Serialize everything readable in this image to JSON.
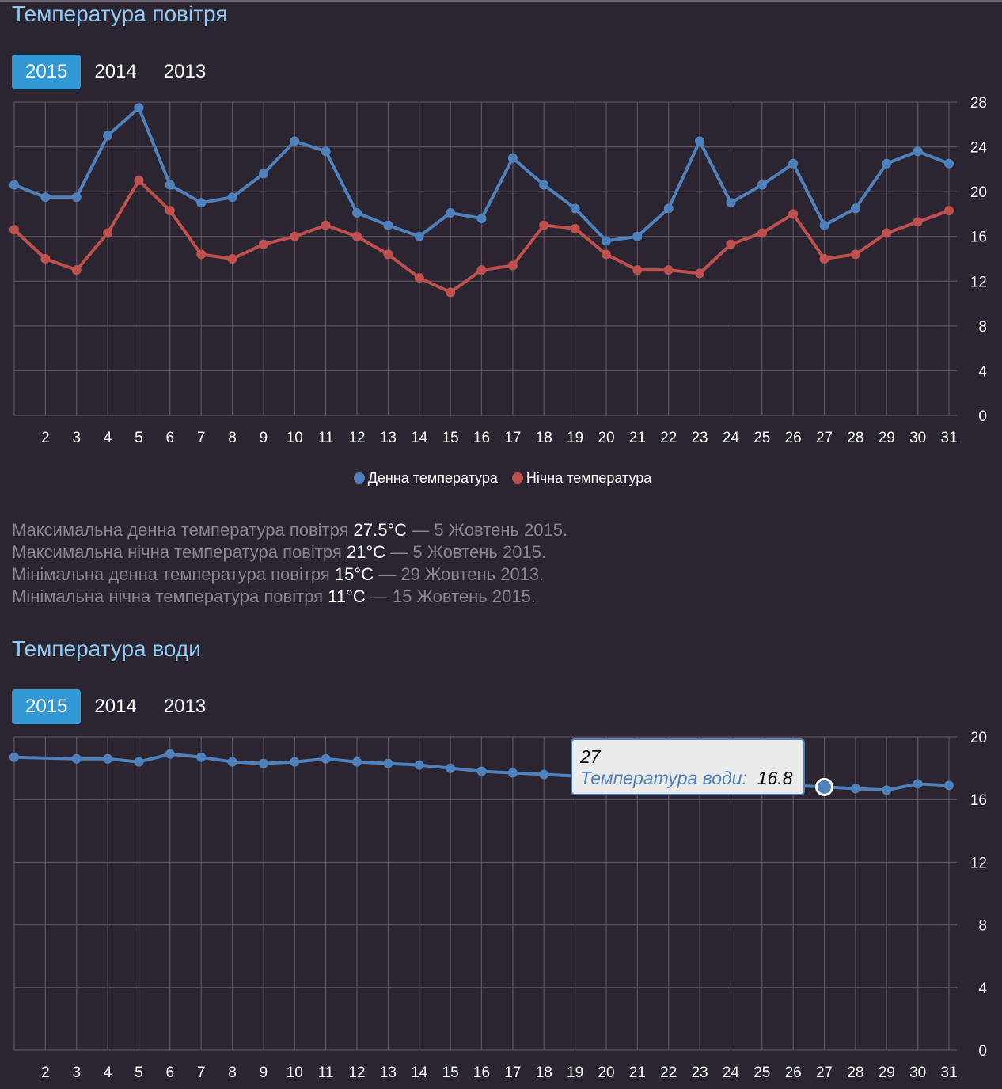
{
  "air": {
    "title": "Температура повітря",
    "tabs": [
      "2015",
      "2014",
      "2013"
    ],
    "active_tab": "2015",
    "stats": [
      {
        "text": "Максимальна денна температура повітря",
        "value": "27.5°C",
        "date": "— 5 Жовтень 2015."
      },
      {
        "text": "Максимальна нічна температура повітря",
        "value": "21°C",
        "date": "— 5 Жовтень 2015."
      },
      {
        "text": "Мінімальна денна температура повітря",
        "value": "15°C",
        "date": "— 29 Жовтень 2013."
      },
      {
        "text": "Мінімальна нічна температура повітря",
        "value": "11°C",
        "date": "— 15 Жовтень 2015."
      }
    ]
  },
  "water": {
    "title": "Температура води",
    "tabs": [
      "2015",
      "2014",
      "2013"
    ],
    "active_tab": "2015",
    "tooltip": {
      "x": "27",
      "label": "Температура води:",
      "value": "16.8"
    }
  },
  "chart_data": [
    {
      "type": "line",
      "title": "Температура повітря",
      "x": [
        1,
        2,
        3,
        4,
        5,
        6,
        7,
        8,
        9,
        10,
        11,
        12,
        13,
        14,
        15,
        16,
        17,
        18,
        19,
        20,
        21,
        22,
        23,
        24,
        25,
        26,
        27,
        28,
        29,
        30,
        31
      ],
      "xticks": [
        "2",
        "3",
        "4",
        "5",
        "6",
        "7",
        "8",
        "9",
        "10",
        "11",
        "12",
        "13",
        "14",
        "15",
        "16",
        "17",
        "18",
        "19",
        "20",
        "21",
        "22",
        "23",
        "24",
        "25",
        "26",
        "27",
        "28",
        "29",
        "30",
        "31"
      ],
      "yticks": [
        0,
        4,
        8,
        12,
        16,
        20,
        24,
        28
      ],
      "ylim": [
        0,
        28
      ],
      "grid": true,
      "legend": "bottom-center",
      "series": [
        {
          "name": "Денна температура",
          "color": "#4f81bd",
          "values": [
            20.6,
            19.5,
            19.5,
            25,
            27.5,
            20.6,
            19,
            19.5,
            21.6,
            24.5,
            23.6,
            18.1,
            17,
            16,
            18.1,
            17.6,
            23,
            20.6,
            18.5,
            15.6,
            16,
            18.5,
            24.5,
            19,
            20.6,
            22.5,
            17,
            18.5,
            22.5,
            23.6,
            22.5
          ]
        },
        {
          "name": "Нічна температура",
          "color": "#c0504d",
          "values": [
            16.6,
            14,
            13,
            16.3,
            21,
            18.3,
            14.4,
            14,
            15.3,
            16,
            17,
            16,
            14.4,
            12.3,
            11,
            13,
            13.4,
            17,
            16.7,
            14.4,
            13,
            13,
            12.7,
            15.3,
            16.3,
            18,
            14,
            14.4,
            16.3,
            17.3,
            18.3
          ]
        }
      ]
    },
    {
      "type": "line",
      "title": "Температура води",
      "x": [
        1,
        2,
        3,
        4,
        5,
        6,
        7,
        8,
        9,
        10,
        11,
        12,
        13,
        14,
        15,
        16,
        17,
        18,
        19,
        20,
        21,
        22,
        23,
        24,
        25,
        26,
        27,
        28,
        29,
        30,
        31
      ],
      "xticks": [
        "2",
        "3",
        "4",
        "5",
        "6",
        "7",
        "8",
        "9",
        "10",
        "11",
        "12",
        "13",
        "14",
        "15",
        "16",
        "17",
        "18",
        "19",
        "20",
        "21",
        "22",
        "23",
        "24",
        "25",
        "26",
        "27",
        "28",
        "29",
        "30",
        "31"
      ],
      "yticks": [
        0,
        4,
        8,
        12,
        16,
        20
      ],
      "ylim": [
        0,
        20
      ],
      "grid": true,
      "series": [
        {
          "name": "Температура води",
          "color": "#4f81bd",
          "values": [
            18.7,
            null,
            18.6,
            18.6,
            18.4,
            18.9,
            18.7,
            18.4,
            18.3,
            18.4,
            18.6,
            18.4,
            18.3,
            18.2,
            18,
            17.8,
            17.7,
            17.6,
            17.5,
            17.4,
            17.3,
            17.2,
            17.1,
            17,
            16.9,
            16.9,
            16.8,
            16.7,
            16.6,
            17,
            16.9
          ]
        }
      ],
      "highlight": 27
    }
  ]
}
